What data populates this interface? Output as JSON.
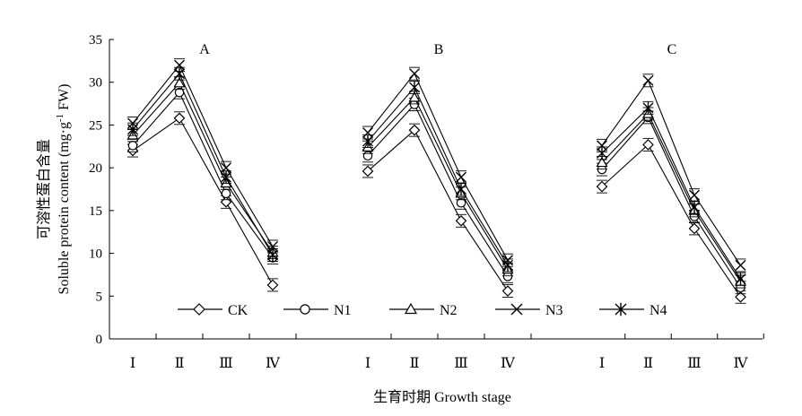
{
  "chart_data": {
    "type": "line",
    "ylabel_cn": "可溶性蛋白含量",
    "ylabel_en_prefix": "Soluble protein content (mg·g",
    "ylabel_en_sup": "-1",
    "ylabel_en_suffix": " FW)",
    "xlabel": "生育时期 Growth stage",
    "ylim": [
      0,
      35
    ],
    "yticks": [
      0,
      5,
      10,
      15,
      20,
      25,
      30,
      35
    ],
    "stages": [
      "Ⅰ",
      "Ⅱ",
      "Ⅲ",
      "Ⅳ"
    ],
    "legend_position": "bottom-center inside plot",
    "series_names": [
      "CK",
      "N1",
      "N2",
      "N3",
      "N4"
    ],
    "markers": [
      "diamond",
      "circle",
      "triangle",
      "x",
      "star"
    ],
    "panels": [
      {
        "label": "A",
        "series": [
          {
            "name": "CK",
            "values": [
              22.0,
              25.8,
              16.0,
              6.3
            ]
          },
          {
            "name": "N1",
            "values": [
              22.6,
              28.8,
              17.0,
              9.5
            ]
          },
          {
            "name": "N2",
            "values": [
              23.8,
              29.9,
              18.2,
              10.1
            ]
          },
          {
            "name": "N3",
            "values": [
              25.2,
              32.0,
              20.0,
              10.8
            ]
          },
          {
            "name": "N4",
            "values": [
              24.5,
              31.0,
              18.9,
              9.8
            ]
          }
        ]
      },
      {
        "label": "B",
        "series": [
          {
            "name": "CK",
            "values": [
              19.6,
              24.4,
              13.8,
              5.6
            ]
          },
          {
            "name": "N1",
            "values": [
              21.4,
              27.4,
              15.9,
              7.3
            ]
          },
          {
            "name": "N2",
            "values": [
              22.4,
              28.2,
              17.0,
              8.1
            ]
          },
          {
            "name": "N3",
            "values": [
              24.1,
              31.0,
              18.9,
              9.2
            ]
          },
          {
            "name": "N4",
            "values": [
              23.1,
              29.4,
              17.5,
              8.6
            ]
          }
        ]
      },
      {
        "label": "C",
        "series": [
          {
            "name": "CK",
            "values": [
              17.8,
              22.7,
              12.9,
              4.9
            ]
          },
          {
            "name": "N1",
            "values": [
              19.8,
              25.9,
              14.3,
              6.0
            ]
          },
          {
            "name": "N2",
            "values": [
              20.6,
              26.3,
              15.0,
              6.7
            ]
          },
          {
            "name": "N3",
            "values": [
              22.6,
              30.2,
              16.8,
              8.6
            ]
          },
          {
            "name": "N4",
            "values": [
              21.7,
              27.0,
              15.4,
              7.0
            ]
          }
        ]
      }
    ]
  }
}
